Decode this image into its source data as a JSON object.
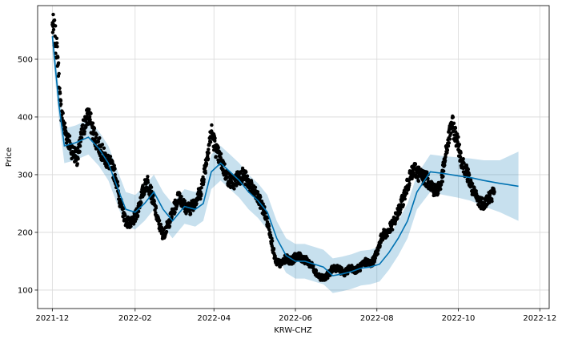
{
  "chart_data": {
    "type": "line",
    "title": "",
    "xlabel": "KRW-CHZ",
    "ylabel": "Price",
    "grid": true,
    "legend": "none",
    "xlim": [
      "2021-11-20",
      "2022-12-08"
    ],
    "ylim": [
      68,
      593
    ],
    "x_ticks": [
      "2021-12",
      "2022-02",
      "2022-04",
      "2022-06",
      "2022-08",
      "2022-10",
      "2022-12"
    ],
    "y_ticks": [
      100,
      200,
      300,
      400,
      500
    ],
    "colors": {
      "forecast_line": "#0072b2",
      "uncertainty_band": "#0072b2",
      "observed_points": "#000000",
      "grid": "#d9d9d9"
    },
    "series": [
      {
        "kind": "observed",
        "x": [
          "2021-12-01",
          "2021-12-03",
          "2021-12-05",
          "2021-12-07",
          "2021-12-10",
          "2021-12-13",
          "2021-12-16",
          "2021-12-20",
          "2021-12-24",
          "2021-12-28",
          "2022-01-01",
          "2022-01-05",
          "2022-01-09",
          "2022-01-13",
          "2022-01-17",
          "2022-01-21",
          "2022-01-25",
          "2022-01-29",
          "2022-02-02",
          "2022-02-06",
          "2022-02-10",
          "2022-02-14",
          "2022-02-18",
          "2022-02-22",
          "2022-02-26",
          "2022-03-02",
          "2022-03-06",
          "2022-03-10",
          "2022-03-14",
          "2022-03-18",
          "2022-03-22",
          "2022-03-26",
          "2022-03-30",
          "2022-04-03",
          "2022-04-07",
          "2022-04-11",
          "2022-04-15",
          "2022-04-19",
          "2022-04-23",
          "2022-04-27",
          "2022-05-01",
          "2022-05-05",
          "2022-05-09",
          "2022-05-13",
          "2022-05-17",
          "2022-05-21",
          "2022-05-25",
          "2022-05-29",
          "2022-06-02",
          "2022-06-06",
          "2022-06-10",
          "2022-06-14",
          "2022-06-18",
          "2022-06-22",
          "2022-06-26",
          "2022-06-30",
          "2022-07-04",
          "2022-07-08",
          "2022-07-12",
          "2022-07-16",
          "2022-07-20",
          "2022-07-24",
          "2022-07-28",
          "2022-08-01",
          "2022-08-05",
          "2022-08-09",
          "2022-08-13",
          "2022-08-17",
          "2022-08-21",
          "2022-08-25",
          "2022-08-29",
          "2022-09-02",
          "2022-09-06",
          "2022-09-10",
          "2022-09-14",
          "2022-09-18",
          "2022-09-22",
          "2022-09-26",
          "2022-09-30",
          "2022-10-04",
          "2022-10-08",
          "2022-10-12",
          "2022-10-16",
          "2022-10-20",
          "2022-10-24",
          "2022-10-28"
        ],
        "y": [
          560,
          540,
          505,
          420,
          380,
          360,
          340,
          330,
          380,
          405,
          370,
          350,
          330,
          320,
          300,
          250,
          220,
          215,
          230,
          265,
          290,
          260,
          220,
          195,
          215,
          240,
          265,
          245,
          240,
          255,
          270,
          320,
          375,
          340,
          320,
          295,
          285,
          295,
          300,
          285,
          270,
          255,
          235,
          200,
          150,
          145,
          155,
          150,
          160,
          155,
          150,
          140,
          125,
          120,
          128,
          140,
          135,
          130,
          138,
          135,
          140,
          150,
          145,
          165,
          195,
          200,
          215,
          235,
          260,
          290,
          310,
          300,
          295,
          285,
          270,
          285,
          340,
          390,
          360,
          320,
          300,
          270,
          255,
          250,
          260,
          270
        ]
      },
      {
        "kind": "forecast",
        "x": [
          "2021-12-01",
          "2021-12-06",
          "2021-12-10",
          "2021-12-18",
          "2021-12-28",
          "2022-01-05",
          "2022-01-12",
          "2022-01-20",
          "2022-01-25",
          "2022-02-01",
          "2022-02-08",
          "2022-02-15",
          "2022-02-22",
          "2022-03-01",
          "2022-03-10",
          "2022-03-18",
          "2022-03-24",
          "2022-03-30",
          "2022-04-06",
          "2022-04-13",
          "2022-04-20",
          "2022-04-27",
          "2022-05-04",
          "2022-05-11",
          "2022-05-18",
          "2022-05-25",
          "2022-06-01",
          "2022-06-08",
          "2022-06-15",
          "2022-06-22",
          "2022-06-29",
          "2022-07-06",
          "2022-07-13",
          "2022-07-20",
          "2022-07-27",
          "2022-08-03",
          "2022-08-10",
          "2022-08-17",
          "2022-08-24",
          "2022-08-31",
          "2022-09-10",
          "2022-09-20",
          "2022-10-01",
          "2022-10-10",
          "2022-10-20",
          "2022-11-01",
          "2022-11-15"
        ],
        "y": [
          540,
          420,
          350,
          355,
          365,
          345,
          320,
          270,
          240,
          235,
          250,
          270,
          240,
          220,
          245,
          240,
          250,
          305,
          320,
          305,
          290,
          270,
          255,
          235,
          190,
          160,
          150,
          150,
          145,
          140,
          125,
          128,
          132,
          138,
          140,
          145,
          165,
          190,
          220,
          270,
          305,
          302,
          298,
          295,
          290,
          285,
          280
        ],
        "y_lower": [
          515,
          395,
          320,
          325,
          335,
          315,
          290,
          240,
          210,
          205,
          220,
          240,
          210,
          190,
          215,
          210,
          220,
          275,
          290,
          275,
          260,
          240,
          225,
          205,
          160,
          130,
          120,
          120,
          115,
          110,
          95,
          98,
          102,
          108,
          110,
          115,
          135,
          160,
          190,
          240,
          270,
          265,
          260,
          255,
          245,
          235,
          220
        ],
        "y_upper": [
          565,
          445,
          380,
          385,
          395,
          375,
          350,
          300,
          270,
          265,
          280,
          300,
          270,
          250,
          275,
          270,
          280,
          335,
          350,
          335,
          320,
          300,
          285,
          265,
          220,
          190,
          180,
          180,
          175,
          170,
          155,
          158,
          162,
          168,
          170,
          175,
          195,
          220,
          250,
          300,
          335,
          332,
          330,
          328,
          325,
          325,
          340
        ]
      }
    ]
  }
}
